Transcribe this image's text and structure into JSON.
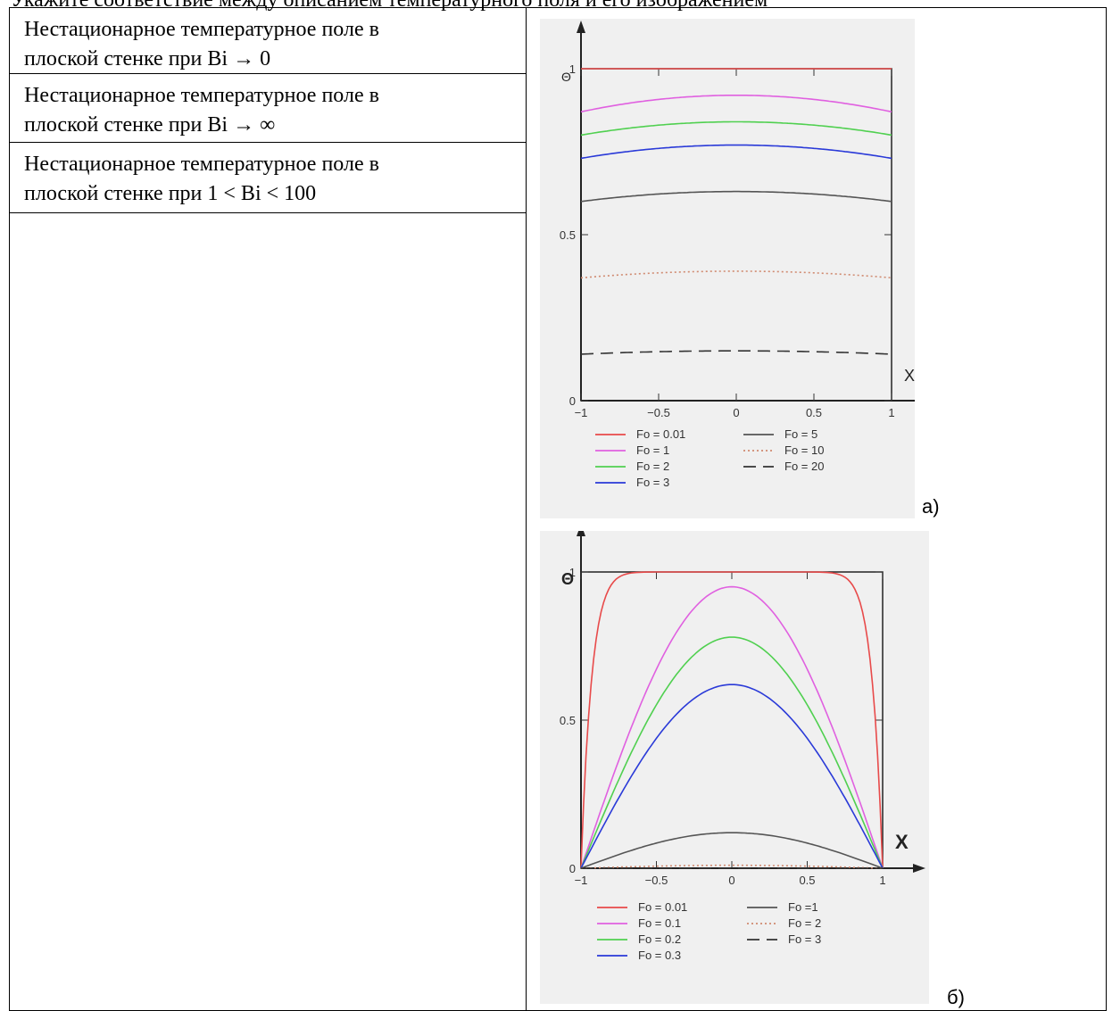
{
  "header": "Укажите соответствие между описанием температурного поля и его изображением",
  "rows": [
    {
      "line1": "Нестационарное температурное поле в",
      "line2": "плоской стенке при Bi → 0"
    },
    {
      "line1": "Нестационарное температурное поле в",
      "line2": "плоской стенке при Bi → ∞"
    },
    {
      "line1": "Нестационарное температурное поле в",
      "line2": "плоской стенке при 1 < Bi < 100"
    }
  ],
  "chart_data": [
    {
      "type": "line",
      "caption": "а)",
      "ylabel": "Θ",
      "xlabel": "X",
      "xlim": [
        -1,
        1
      ],
      "ylim": [
        0,
        1
      ],
      "x_ticks": [
        "−1",
        "−0.5",
        "0",
        "0.5",
        "1"
      ],
      "y_ticks": [
        "0",
        "0.5",
        "1"
      ],
      "series": [
        {
          "name": "Fo = 0.01",
          "color": "#e84a4a",
          "style": "solid",
          "edge": 1.0,
          "center": 1.0
        },
        {
          "name": "Fo = 1",
          "color": "#e060e0",
          "style": "solid",
          "edge": 0.87,
          "center": 0.92
        },
        {
          "name": "Fo = 2",
          "color": "#50d050",
          "style": "solid",
          "edge": 0.8,
          "center": 0.84
        },
        {
          "name": "Fo = 3",
          "color": "#2a3ad8",
          "style": "solid",
          "edge": 0.73,
          "center": 0.77
        },
        {
          "name": "Fo = 5",
          "color": "#555555",
          "style": "solid",
          "edge": 0.6,
          "center": 0.63
        },
        {
          "name": "Fo = 10",
          "color": "#d08a70",
          "style": "dotted",
          "edge": 0.37,
          "center": 0.39
        },
        {
          "name": "Fo = 20",
          "color": "#333333",
          "style": "dashed",
          "edge": 0.14,
          "center": 0.15
        }
      ]
    },
    {
      "type": "line",
      "caption": "б)",
      "ylabel": "Θ",
      "xlabel": "X",
      "xlim": [
        -1,
        1
      ],
      "ylim": [
        0,
        1
      ],
      "x_ticks": [
        "−1",
        "−0.5",
        "0",
        "0.5",
        "1"
      ],
      "y_ticks": [
        "0",
        "0.5",
        "1"
      ],
      "series": [
        {
          "name": "Fo = 0.01",
          "color": "#e84a4a",
          "style": "solid",
          "peak": 1.0,
          "shape": "plateau"
        },
        {
          "name": "Fo = 0.1",
          "color": "#e060e0",
          "style": "solid",
          "peak": 0.95,
          "shape": "dome"
        },
        {
          "name": "Fo = 0.2",
          "color": "#50d050",
          "style": "solid",
          "peak": 0.78,
          "shape": "dome"
        },
        {
          "name": "Fo = 0.3",
          "color": "#2a3ad8",
          "style": "solid",
          "peak": 0.62,
          "shape": "dome"
        },
        {
          "name": "Fo =1",
          "color": "#555555",
          "style": "solid",
          "peak": 0.12,
          "shape": "dome"
        },
        {
          "name": "Fo = 2",
          "color": "#d08a70",
          "style": "dotted",
          "peak": 0.01,
          "shape": "dome"
        },
        {
          "name": "Fo = 3",
          "color": "#333333",
          "style": "dashed",
          "peak": 0.0,
          "shape": "dome"
        }
      ]
    }
  ]
}
